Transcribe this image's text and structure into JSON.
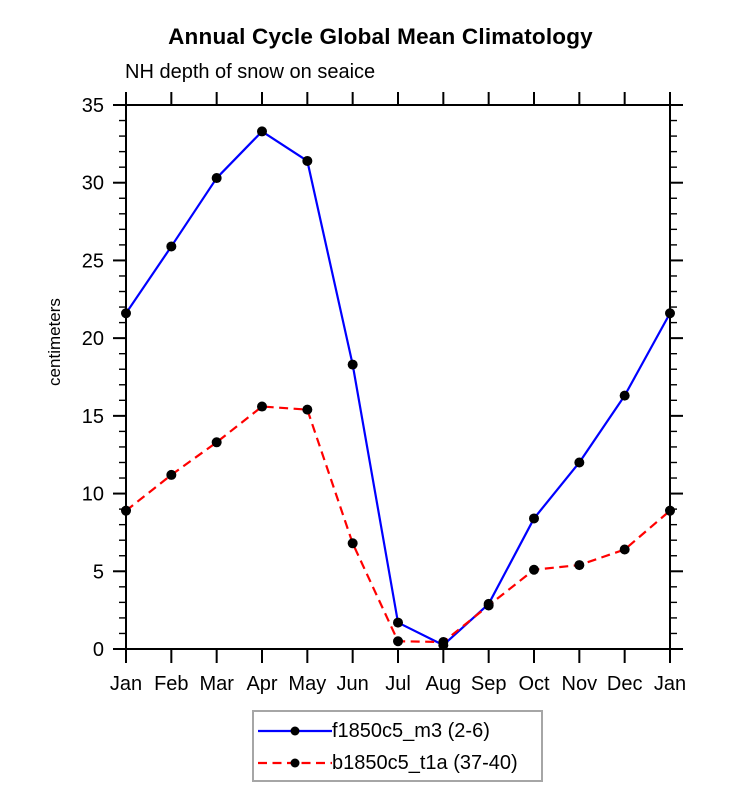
{
  "chart_data": {
    "type": "line",
    "title": "Annual Cycle Global Mean Climatology",
    "subtitle": "NH depth of snow on seaice",
    "ylabel": "centimeters",
    "xlabel": "",
    "categories": [
      "Jan",
      "Feb",
      "Mar",
      "Apr",
      "May",
      "Jun",
      "Jul",
      "Aug",
      "Sep",
      "Oct",
      "Nov",
      "Dec",
      "Jan"
    ],
    "ylim": [
      0,
      35
    ],
    "yticks_major": [
      0,
      5,
      10,
      15,
      20,
      25,
      30,
      35
    ],
    "ytick_minor_step": 1,
    "grid": false,
    "legend_position": "bottom-center",
    "series": [
      {
        "name": "f1850c5_m3 (2-6)",
        "color": "#0000ff",
        "line_style": "solid",
        "marker": "black-dot",
        "values": [
          21.6,
          25.9,
          30.3,
          33.3,
          31.4,
          18.3,
          1.7,
          0.25,
          2.9,
          8.4,
          12.0,
          16.3,
          21.6
        ]
      },
      {
        "name": "b1850c5_t1a (37-40)",
        "color": "#ff0000",
        "line_style": "dashed",
        "marker": "black-dot",
        "values": [
          8.9,
          11.2,
          13.3,
          15.6,
          15.4,
          6.8,
          0.5,
          0.45,
          2.8,
          5.1,
          5.4,
          6.4,
          8.9
        ]
      }
    ],
    "colors": {
      "axis": "#000000",
      "marker": "#000000",
      "legend_border": "#a6a6a6",
      "background": "#ffffff"
    }
  }
}
